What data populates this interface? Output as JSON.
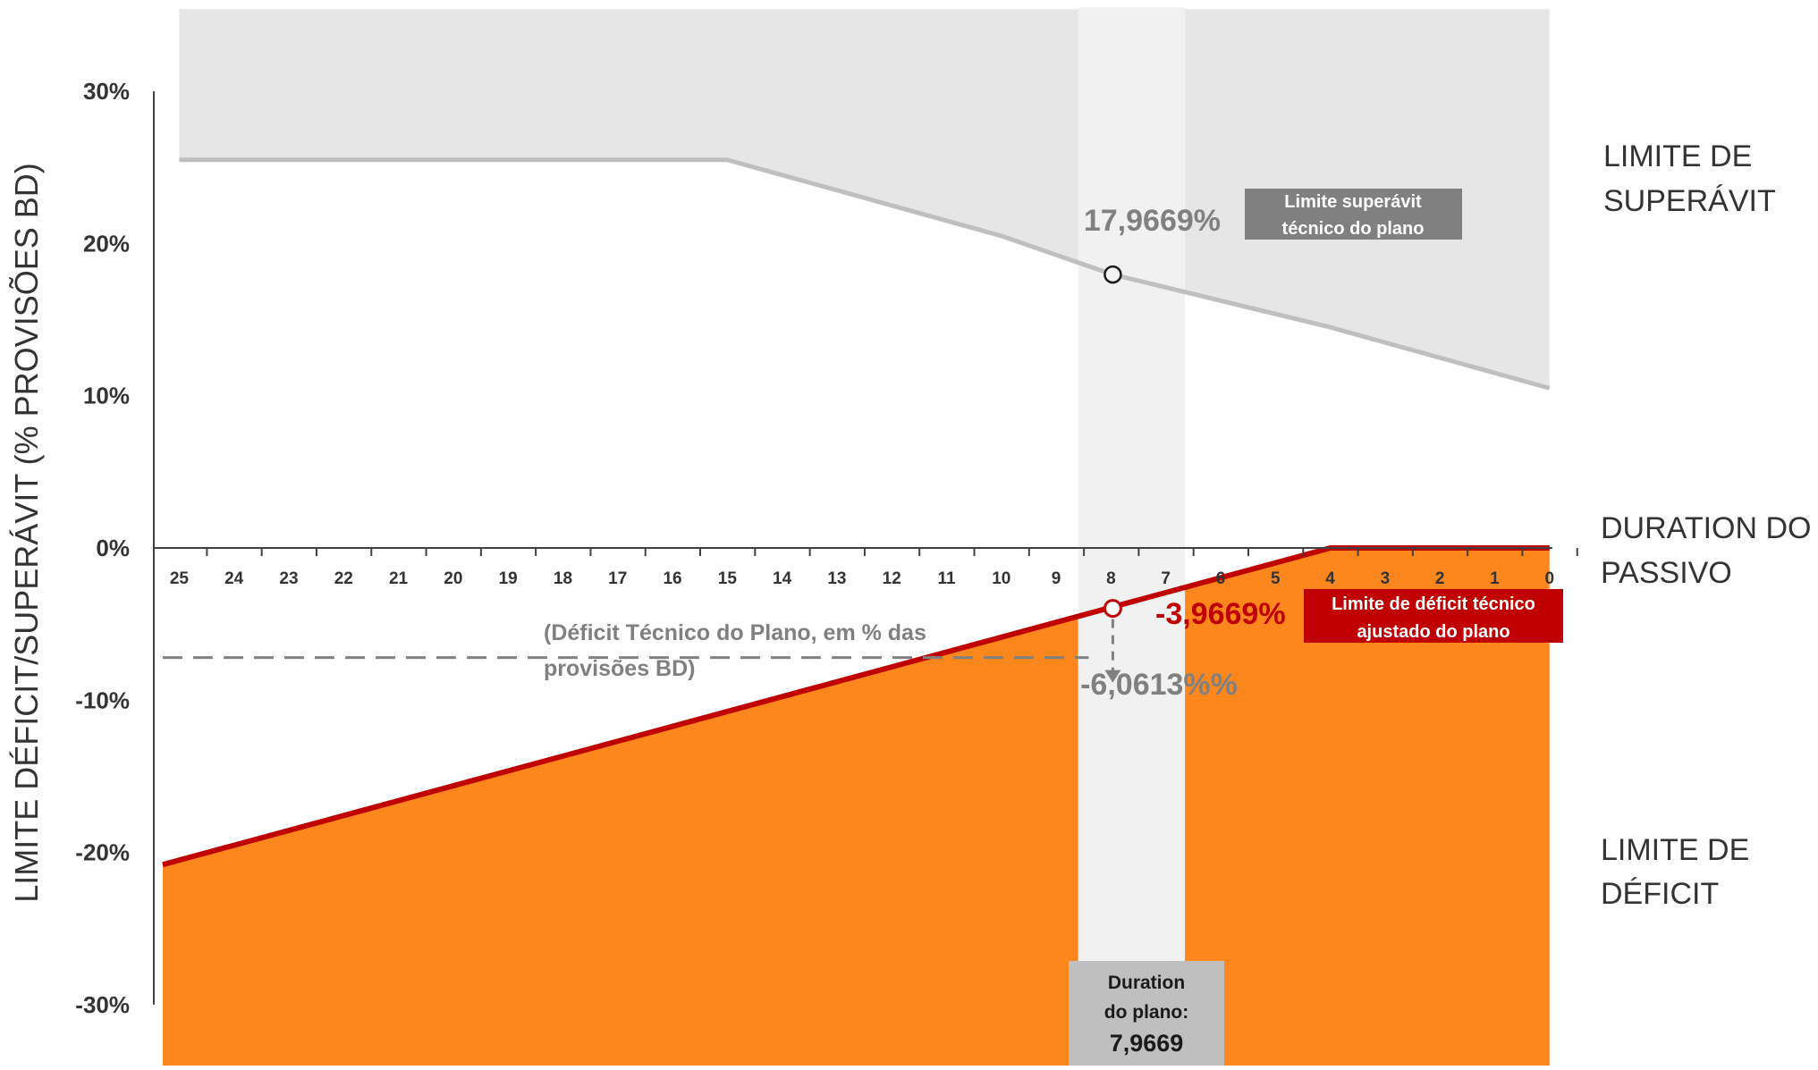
{
  "chart_data": {
    "type": "area",
    "ylabel": "LIMITE DÉFICIT/SUPERÁVIT (% PROVISÕES BD)",
    "xlabel": "",
    "ylim": [
      -34,
      36
    ],
    "xlim": [
      25.3,
      -0.2
    ],
    "x_reversed": true,
    "yticks": [
      {
        "value": 30,
        "label": "30%"
      },
      {
        "value": 20,
        "label": "20%"
      },
      {
        "value": 10,
        "label": "10%"
      },
      {
        "value": 0,
        "label": "0%"
      },
      {
        "value": -10,
        "label": "-10%"
      },
      {
        "value": -20,
        "label": "-20%"
      },
      {
        "value": -30,
        "label": "-30%"
      }
    ],
    "x_tick_labels": [
      "25",
      "24",
      "23",
      "22",
      "21",
      "20",
      "19",
      "18",
      "17",
      "16",
      "15",
      "14",
      "13",
      "12",
      "11",
      "10",
      "9",
      "8",
      "7",
      "6",
      "5",
      "4",
      "3",
      "2",
      "1",
      "0"
    ],
    "colors": {
      "surplus_fill": "#e6e6e6",
      "surplus_line": "#bfbfbf",
      "deficit_fill": "#fd871d",
      "deficit_line": "#c00000",
      "duration_band": "#f1f1f1",
      "surplus_box": "#808080",
      "deficit_box": "#c00000",
      "duration_box": "#bfbfbf",
      "axis": "#404040"
    },
    "series": [
      {
        "name": "LIMITE DE SUPERÁVIT",
        "points": [
          {
            "x": 25,
            "y": 25.5
          },
          {
            "x": 15,
            "y": 25.5
          },
          {
            "x": 10,
            "y": 20.5
          },
          {
            "x": 7.9669,
            "y": 17.9669
          },
          {
            "x": 4,
            "y": 14.5
          },
          {
            "x": 0,
            "y": 10.5
          }
        ]
      },
      {
        "name": "LIMITE DE DÉFICIT",
        "points": [
          {
            "x": 25.3,
            "y": -20.8
          },
          {
            "x": 4,
            "y": 0
          },
          {
            "x": 0,
            "y": 0
          }
        ]
      }
    ],
    "duration_band": [
      8.6,
      6.65
    ],
    "side_labels": {
      "surplus": [
        "LIMITE DE",
        "SUPERÁVIT"
      ],
      "zero": [
        "DURATION DO",
        "PASSIVO"
      ],
      "deficit": [
        "LIMITE DE",
        "DÉFICIT"
      ]
    },
    "annotations": {
      "surplus_point": {
        "x": 7.9669,
        "y": 17.9669,
        "label": "17,9669%"
      },
      "surplus_box": [
        "Limite superávit",
        "técnico do plano"
      ],
      "deficit_point": {
        "x": 7.9669,
        "y": -3.9669,
        "label": "-3,9669%"
      },
      "deficit_box": [
        "Limite de déficit técnico",
        "ajustado do plano"
      ],
      "plan_deficit": {
        "y": -7.2,
        "label": "-6,0613%%"
      },
      "plan_deficit_note": [
        "(Déficit Técnico do Plano, em % das",
        "provisões BD)"
      ],
      "duration_box": [
        "Duration",
        "do plano:",
        "7,9669"
      ]
    }
  }
}
